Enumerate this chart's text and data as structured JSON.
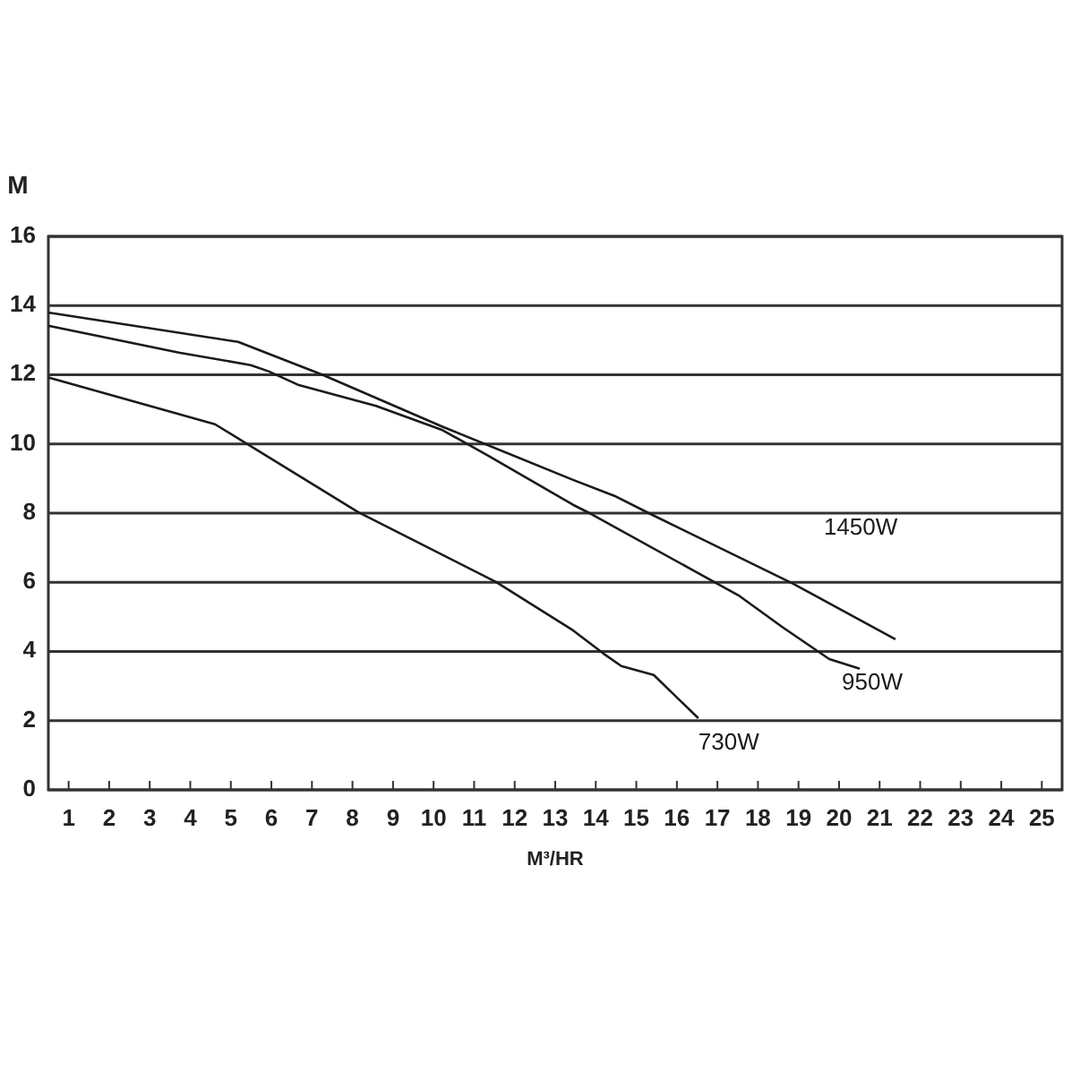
{
  "chart_data": {
    "type": "line",
    "xlabel": "M³/HR",
    "ylabel": "M",
    "xlim": [
      0.5,
      25.5
    ],
    "xticks": [
      1,
      2,
      3,
      4,
      5,
      6,
      7,
      8,
      9,
      10,
      11,
      12,
      13,
      14,
      15,
      16,
      17,
      18,
      19,
      20,
      21,
      22,
      23,
      24,
      25
    ],
    "ylim": [
      0,
      16
    ],
    "yticks": [
      0,
      2,
      4,
      6,
      8,
      10,
      12,
      14,
      16
    ],
    "grid": "y",
    "marker": "none",
    "line_style": "solid",
    "series": [
      {
        "name": "1450W",
        "color": "#1a1a1a",
        "x": [
          0.5,
          5.18,
          7.26,
          10.22,
          13.44,
          14.46,
          15.34,
          18.87,
          21.39
        ],
        "values": [
          13.8,
          12.95,
          12.0,
          10.5,
          8.96,
          8.5,
          7.98,
          5.96,
          4.35
        ]
      },
      {
        "name": "950W",
        "color": "#1a1a1a",
        "x": [
          0.5,
          3.72,
          5.49,
          5.93,
          6.68,
          8.58,
          10.22,
          11.23,
          13.44,
          13.88,
          17.55,
          18.61,
          19.76,
          20.51
        ],
        "values": [
          13.42,
          12.64,
          12.28,
          12.1,
          11.7,
          11.1,
          10.4,
          9.74,
          8.24,
          7.98,
          5.6,
          4.7,
          3.78,
          3.5
        ]
      },
      {
        "name": "730W",
        "color": "#1a1a1a",
        "x": [
          0.5,
          4.61,
          8.14,
          11.54,
          13.44,
          14.19,
          14.63,
          15.43,
          16.53
        ],
        "values": [
          11.92,
          10.57,
          8.03,
          6.01,
          4.61,
          3.94,
          3.58,
          3.32,
          2.07
        ]
      }
    ]
  }
}
